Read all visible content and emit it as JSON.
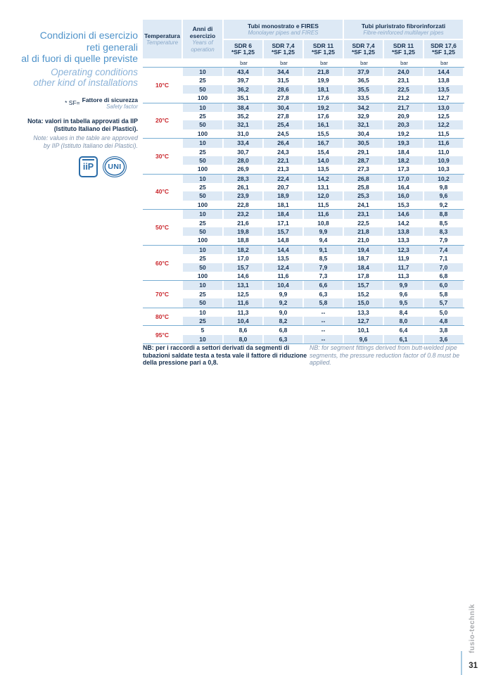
{
  "sidebar": {
    "title_lines": [
      "Condizioni di esercizio",
      "reti generali",
      "al di fuori di quelle previste"
    ],
    "subtitle_lines": [
      "Operating conditions",
      "other kind of installations"
    ],
    "sf_prefix": "* SF=",
    "sf_label_it": "Fattore di sicurezza",
    "sf_label_en": "Safety factor",
    "note_it_lines": [
      "Nota: valori in tabella approvati da IIP",
      "(Istituto Italiano dei Plastici)."
    ],
    "note_en_lines": [
      "Note: values in the table are approved",
      "by IIP (Istituto Italiano dei Plastici)."
    ],
    "logo_iip_text": "iiP",
    "logo_uni_text": "UNI"
  },
  "table": {
    "header": {
      "temperature_it": "Temperatura",
      "temperature_en": "Temperature",
      "years_it": "Anni di esercizio",
      "years_en": "Years of operation",
      "group1_it": "Tubi monostrato e FIRES",
      "group1_en": "Monolayer pipes and FIRES",
      "group2_it": "Tubi pluristrato fibrorinforzati",
      "group2_en": "Fibre-reinforced multilayer pipes",
      "columns": [
        {
          "sdr": "SDR 6",
          "sf": "*SF 1,25"
        },
        {
          "sdr": "SDR 7,4",
          "sf": "*SF 1,25"
        },
        {
          "sdr": "SDR 11",
          "sf": "*SF 1,25"
        },
        {
          "sdr": "SDR 7,4",
          "sf": "*SF 1,25"
        },
        {
          "sdr": "SDR 11",
          "sf": "*SF 1,25"
        },
        {
          "sdr": "SDR 17,6",
          "sf": "*SF 1,25"
        }
      ],
      "unit": "bar"
    },
    "groups": [
      {
        "temp": "10°C",
        "rows": [
          {
            "years": "10",
            "values": [
              "43,4",
              "34,4",
              "21,8",
              "37,9",
              "24,0",
              "14,4"
            ]
          },
          {
            "years": "25",
            "values": [
              "39,7",
              "31,5",
              "19,9",
              "36,5",
              "23,1",
              "13,8"
            ]
          },
          {
            "years": "50",
            "values": [
              "36,2",
              "28,6",
              "18,1",
              "35,5",
              "22,5",
              "13,5"
            ]
          },
          {
            "years": "100",
            "values": [
              "35,1",
              "27,8",
              "17,6",
              "33,5",
              "21,2",
              "12,7"
            ]
          }
        ]
      },
      {
        "temp": "20°C",
        "rows": [
          {
            "years": "10",
            "values": [
              "38,4",
              "30,4",
              "19,2",
              "34,2",
              "21,7",
              "13,0"
            ]
          },
          {
            "years": "25",
            "values": [
              "35,2",
              "27,8",
              "17,6",
              "32,9",
              "20,9",
              "12,5"
            ]
          },
          {
            "years": "50",
            "values": [
              "32,1",
              "25,4",
              "16,1",
              "32,1",
              "20,3",
              "12,2"
            ]
          },
          {
            "years": "100",
            "values": [
              "31,0",
              "24,5",
              "15,5",
              "30,4",
              "19,2",
              "11,5"
            ]
          }
        ]
      },
      {
        "temp": "30°C",
        "rows": [
          {
            "years": "10",
            "values": [
              "33,4",
              "26,4",
              "16,7",
              "30,5",
              "19,3",
              "11,6"
            ]
          },
          {
            "years": "25",
            "values": [
              "30,7",
              "24,3",
              "15,4",
              "29,1",
              "18,4",
              "11,0"
            ]
          },
          {
            "years": "50",
            "values": [
              "28,0",
              "22,1",
              "14,0",
              "28,7",
              "18,2",
              "10,9"
            ]
          },
          {
            "years": "100",
            "values": [
              "26,9",
              "21,3",
              "13,5",
              "27,3",
              "17,3",
              "10,3"
            ]
          }
        ]
      },
      {
        "temp": "40°C",
        "rows": [
          {
            "years": "10",
            "values": [
              "28,3",
              "22,4",
              "14,2",
              "26,8",
              "17,0",
              "10,2"
            ]
          },
          {
            "years": "25",
            "values": [
              "26,1",
              "20,7",
              "13,1",
              "25,8",
              "16,4",
              "9,8"
            ]
          },
          {
            "years": "50",
            "values": [
              "23,9",
              "18,9",
              "12,0",
              "25,3",
              "16,0",
              "9,6"
            ]
          },
          {
            "years": "100",
            "values": [
              "22,8",
              "18,1",
              "11,5",
              "24,1",
              "15,3",
              "9,2"
            ]
          }
        ]
      },
      {
        "temp": "50°C",
        "rows": [
          {
            "years": "10",
            "values": [
              "23,2",
              "18,4",
              "11,6",
              "23,1",
              "14,6",
              "8,8"
            ]
          },
          {
            "years": "25",
            "values": [
              "21,6",
              "17,1",
              "10,8",
              "22,5",
              "14,2",
              "8,5"
            ]
          },
          {
            "years": "50",
            "values": [
              "19,8",
              "15,7",
              "9,9",
              "21,8",
              "13,8",
              "8,3"
            ]
          },
          {
            "years": "100",
            "values": [
              "18,8",
              "14,8",
              "9,4",
              "21,0",
              "13,3",
              "7,9"
            ]
          }
        ]
      },
      {
        "temp": "60°C",
        "rows": [
          {
            "years": "10",
            "values": [
              "18,2",
              "14,4",
              "9,1",
              "19,4",
              "12,3",
              "7,4"
            ]
          },
          {
            "years": "25",
            "values": [
              "17,0",
              "13,5",
              "8,5",
              "18,7",
              "11,9",
              "7,1"
            ]
          },
          {
            "years": "50",
            "values": [
              "15,7",
              "12,4",
              "7,9",
              "18,4",
              "11,7",
              "7,0"
            ]
          },
          {
            "years": "100",
            "values": [
              "14,6",
              "11,6",
              "7,3",
              "17,8",
              "11,3",
              "6,8"
            ]
          }
        ]
      },
      {
        "temp": "70°C",
        "rows": [
          {
            "years": "10",
            "values": [
              "13,1",
              "10,4",
              "6,6",
              "15,7",
              "9,9",
              "6,0"
            ]
          },
          {
            "years": "25",
            "values": [
              "12,5",
              "9,9",
              "6,3",
              "15,2",
              "9,6",
              "5,8"
            ]
          },
          {
            "years": "50",
            "values": [
              "11,6",
              "9,2",
              "5,8",
              "15,0",
              "9,5",
              "5,7"
            ]
          }
        ]
      },
      {
        "temp": "80°C",
        "rows": [
          {
            "years": "10",
            "values": [
              "11,3",
              "9,0",
              "--",
              "13,3",
              "8,4",
              "5,0"
            ]
          },
          {
            "years": "25",
            "values": [
              "10,4",
              "8,2",
              "--",
              "12,7",
              "8,0",
              "4,8"
            ]
          }
        ]
      },
      {
        "temp": "95°C",
        "rows": [
          {
            "years": "5",
            "values": [
              "8,6",
              "6,8",
              "--",
              "10,1",
              "6,4",
              "3,8"
            ]
          },
          {
            "years": "10",
            "values": [
              "8,0",
              "6,3",
              "--",
              "9,6",
              "6,1",
              "3,6"
            ]
          }
        ]
      }
    ]
  },
  "footer": {
    "nb_it": "NB: per i raccordi a settori derivati da segmenti di tubazioni saldate testa a testa vale il fattore di riduzione della pressione pari a 0,8.",
    "nb_en": "NB: for segment fittings derived from butt-welded pipe segments, the pressure reduction factor of 0.8 must be applied."
  },
  "page": {
    "brand_vertical": "fusio-technik",
    "number": "31"
  },
  "colors": {
    "accent_blue": "#4f93ca",
    "light_blue_bg": "#dde9f5",
    "navy_text": "#16304f",
    "temperature_red": "#c9252b",
    "separator_blue": "#79aed3",
    "italic_blue": "#8aa8c8",
    "brand_gray": "#a7a9ac"
  }
}
